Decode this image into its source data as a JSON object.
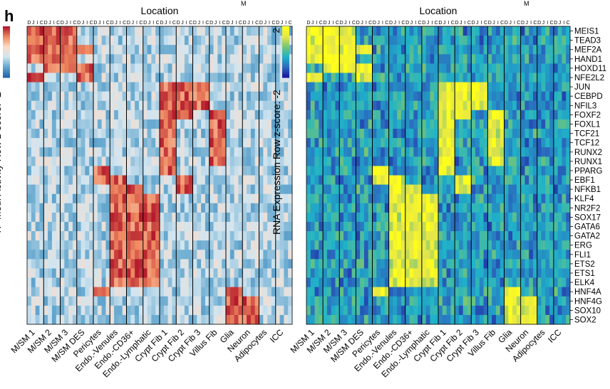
{
  "figure": {
    "panel_letter": "h",
    "top_cut_text": [
      "M",
      "M"
    ]
  },
  "chart_data": [
    {
      "type": "heatmap",
      "title": "Location",
      "ylabel": "TF Motif Activity Row z-score:",
      "colorbar": {
        "ticks": [
          "2",
          "-2"
        ],
        "colors": [
          "#b2182b",
          "#ef8a62",
          "#fddbc7",
          "#d1e5f0",
          "#67a9cf",
          "#2166ac"
        ]
      },
      "location_labels": [
        "D",
        "J",
        "I",
        "C"
      ],
      "location_colors": [
        "#ffffff",
        "#ffffff",
        "#ffffff",
        "#ffffff"
      ],
      "groups": [
        "M/SM 1",
        "M/SM 2",
        "M/SM 3",
        "M/SM DES",
        "Pericytes",
        "Endo.-Venules",
        "Endo.-CD36+",
        "Endo.-Lymphatic",
        "Crypt Fib 1",
        "Crypt Fib 2",
        "Crypt Fib 3",
        "Villus Fib",
        "Glia",
        "Neuron",
        "Adipocytes",
        "ICC"
      ],
      "rows": [
        "MEIS1",
        "TEAD3",
        "MEF2A",
        "HAND1",
        "HOXD11",
        "NFE2L2",
        "JUN",
        "CEBPD",
        "NFIL3",
        "FOXF2",
        "FOXL1",
        "TCF21",
        "TCF12",
        "RUNX2",
        "RUNX1",
        "PPARG",
        "EBF1",
        "NFKB1",
        "KLF4",
        "NR2F2",
        "SOX17",
        "GATA6",
        "GATA2",
        "ERG",
        "FLI1",
        "ETS2",
        "ETS1",
        "ELK4",
        "HNF4A",
        "HNF4G",
        "SOX10",
        "SOX2"
      ],
      "zlim": [
        -2,
        2
      ]
    },
    {
      "type": "heatmap",
      "title": "Location",
      "ylabel": "RNA Expression Row z-score:",
      "colorbar": {
        "ticks": [
          "2",
          "-2"
        ],
        "colors": [
          "#ffff1a",
          "#e6e647",
          "#74c476",
          "#1fb3c9",
          "#2a6ebf",
          "#1a1a9e"
        ]
      },
      "location_labels": [
        "D",
        "J",
        "I",
        "C"
      ],
      "groups": [
        "M/SM 1",
        "M/SM 2",
        "M/SM 3",
        "M/SM DES",
        "Pericytes",
        "Endo.-Venules",
        "Endo.-CD36+",
        "Endo.-Lymphatic",
        "Crypt Fib 1",
        "Crypt Fib 2",
        "Crypt Fib 3",
        "Villus Fib",
        "Glia",
        "Neuron",
        "Adipocytes",
        "ICC"
      ],
      "rows": [
        "MEIS1",
        "TEAD3",
        "MEF2A",
        "HAND1",
        "HOXD11",
        "NFE2L2",
        "JUN",
        "CEBPD",
        "NFIL3",
        "FOXF2",
        "FOXL1",
        "TCF21",
        "TCF12",
        "RUNX2",
        "RUNX1",
        "PPARG",
        "EBF1",
        "NFKB1",
        "KLF4",
        "NR2F2",
        "SOX17",
        "GATA6",
        "GATA2",
        "ERG",
        "FLI1",
        "ETS2",
        "ETS1",
        "ELK4",
        "HNF4A",
        "HNF4G",
        "SOX10",
        "SOX2"
      ],
      "zlim": [
        -2,
        2
      ]
    }
  ],
  "row_group_map": {
    "MEIS1": [
      0,
      1,
      2
    ],
    "TEAD3": [
      0,
      1,
      2
    ],
    "MEF2A": [
      0,
      1,
      2,
      3
    ],
    "HAND1": [
      0,
      1,
      2
    ],
    "HOXD11": [
      1,
      2,
      3
    ],
    "NFE2L2": [
      0,
      3
    ],
    "JUN": [
      8,
      9,
      10
    ],
    "CEBPD": [
      8,
      9,
      10
    ],
    "NFIL3": [
      8,
      9,
      10
    ],
    "FOXF2": [
      8,
      9,
      11
    ],
    "FOXL1": [
      8,
      11
    ],
    "TCF21": [
      8,
      11
    ],
    "TCF12": [
      8,
      11
    ],
    "RUNX2": [
      8,
      11
    ],
    "RUNX1": [
      8,
      11
    ],
    "PPARG": [
      4,
      8
    ],
    "EBF1": [
      4,
      5,
      9
    ],
    "NFKB1": [
      5,
      6,
      9
    ],
    "KLF4": [
      5,
      6,
      7
    ],
    "NR2F2": [
      5,
      6,
      7
    ],
    "SOX17": [
      5,
      6,
      7
    ],
    "GATA6": [
      5,
      6,
      7
    ],
    "GATA2": [
      5,
      6,
      7
    ],
    "ERG": [
      5,
      6,
      7
    ],
    "FLI1": [
      5,
      6,
      7
    ],
    "ETS2": [
      5,
      6,
      7
    ],
    "ETS1": [
      5,
      6,
      7
    ],
    "ELK4": [
      5,
      6,
      7
    ],
    "HNF4A": [
      4,
      12
    ],
    "HNF4G": [
      12,
      13
    ],
    "SOX10": [
      12,
      13
    ],
    "SOX2": [
      12,
      13
    ]
  }
}
